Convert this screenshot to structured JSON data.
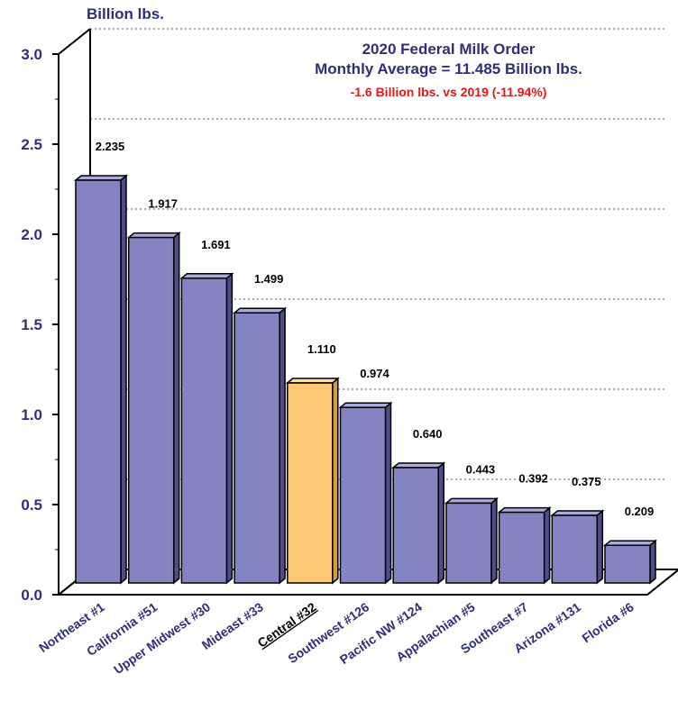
{
  "chart_data": {
    "type": "bar",
    "title": "2020 Federal Milk Order",
    "subtitle": "Monthly Average = 11.485 Billion lbs.",
    "annotation": "-1.6 Billion lbs. vs 2019 (-11.94%)",
    "ylabel": "Billion lbs.",
    "xlabel": "",
    "ylim": [
      0,
      3.0
    ],
    "yticks": [
      "0.0",
      "0.5",
      "1.0",
      "1.5",
      "2.0",
      "2.5",
      "3.0"
    ],
    "grid": true,
    "three_d": true,
    "categories": [
      "Northeast #1",
      "California #51",
      "Upper Midwest #30",
      "Mideast #33",
      "Central #32",
      "Southwest #126",
      "Pacific NW #124",
      "Appalachian #5",
      "Southeast #7",
      "Arizona #131",
      "Florida #6"
    ],
    "values": [
      2.235,
      1.917,
      1.691,
      1.499,
      1.11,
      0.974,
      0.64,
      0.443,
      0.392,
      0.375,
      0.209
    ],
    "value_labels": [
      "2.235",
      "1.917",
      "1.691",
      "1.499",
      "1.110",
      "0.974",
      "0.640",
      "0.443",
      "0.392",
      "0.375",
      "0.209"
    ],
    "highlight_index": 4,
    "colors": {
      "bar": "#8484c2",
      "bar_side": "#4c4c8e",
      "bar_top": "#aaaade",
      "highlight": "#fdc775",
      "highlight_side": "#d79a3f",
      "highlight_top": "#fedda6",
      "text": "#2e2e7a",
      "annotation": "#e01b1b"
    }
  }
}
